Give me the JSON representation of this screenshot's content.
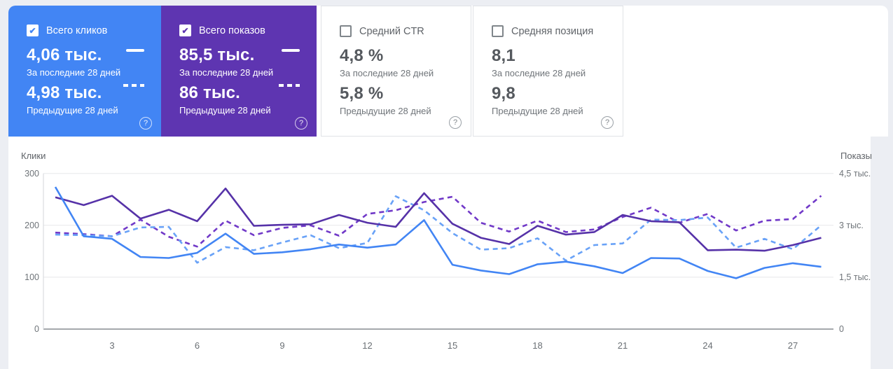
{
  "colors": {
    "page_background": "#eceef3",
    "panel_background": "#ffffff",
    "clicks_accent": "#4285f4",
    "impressions_accent": "#5e35b1",
    "card_border": "#e0e2e6",
    "grid_line": "#e7e8ea",
    "x_axis_line": "#878c91",
    "y_axis_line": "#dadce0"
  },
  "cards": [
    {
      "title": "Всего кликов",
      "checked": true,
      "filled": true,
      "color": "#4285f4",
      "current_value": "4,06 тыс.",
      "current_label": "За последние 28 дней",
      "previous_value": "4,98 тыс.",
      "previous_label": "Предыдущие 28 дней",
      "help_icon": "?",
      "check_glyph": "✔"
    },
    {
      "title": "Всего показов",
      "checked": true,
      "filled": true,
      "color": "#5e35b1",
      "current_value": "85,5 тыс.",
      "current_label": "За последние 28 дней",
      "previous_value": "86 тыс.",
      "previous_label": "Предыдущие 28 дней",
      "help_icon": "?",
      "check_glyph": "✔"
    },
    {
      "title": "Средний CTR",
      "checked": false,
      "filled": false,
      "color": "#ffffff",
      "current_value": "4,8 %",
      "current_label": "За последние 28 дней",
      "previous_value": "5,8 %",
      "previous_label": "Предыдущие 28 дней",
      "help_icon": "?",
      "check_glyph": ""
    },
    {
      "title": "Средняя позиция",
      "checked": false,
      "filled": false,
      "color": "#ffffff",
      "current_value": "8,1",
      "current_label": "За последние 28 дней",
      "previous_value": "9,8",
      "previous_label": "Предыдущие 28 дней",
      "help_icon": "?",
      "check_glyph": ""
    }
  ],
  "chart_data": {
    "type": "line",
    "x": [
      1,
      2,
      3,
      4,
      5,
      6,
      7,
      8,
      9,
      10,
      11,
      12,
      13,
      14,
      15,
      16,
      17,
      18,
      19,
      20,
      21,
      22,
      23,
      24,
      25,
      26,
      27,
      28
    ],
    "x_ticks": [
      {
        "label": "3",
        "day": 3
      },
      {
        "label": "6",
        "day": 6
      },
      {
        "label": "9",
        "day": 9
      },
      {
        "label": "12",
        "day": 12
      },
      {
        "label": "15",
        "day": 15
      },
      {
        "label": "18",
        "day": 18
      },
      {
        "label": "21",
        "day": 21
      },
      {
        "label": "24",
        "day": 24
      },
      {
        "label": "27",
        "day": 27
      }
    ],
    "left_axis": {
      "title": "Клики",
      "min": 0,
      "max": 300,
      "ticks": [
        {
          "label": "0",
          "value": 0
        },
        {
          "label": "100",
          "value": 100
        },
        {
          "label": "200",
          "value": 200
        },
        {
          "label": "300",
          "value": 300
        }
      ]
    },
    "right_axis": {
      "title": "Показы",
      "min": 0,
      "max": 4500,
      "ticks": [
        {
          "label": "0",
          "value": 0
        },
        {
          "label": "1,5 тыс.",
          "value": 1500
        },
        {
          "label": "3 тыс.",
          "value": 3000
        },
        {
          "label": "4,5 тыс.",
          "value": 4500
        }
      ]
    },
    "grid": true,
    "legend_position": "none",
    "series": [
      {
        "name": "Показы — предыдущие 28 дней",
        "axis": "right",
        "style": "dashed",
        "color": "#7139c8",
        "values": [
          2790,
          2745,
          2685,
          3165,
          2670,
          2385,
          3135,
          2715,
          2925,
          3000,
          2700,
          3330,
          3435,
          3675,
          3825,
          3075,
          2820,
          3135,
          2805,
          2880,
          3240,
          3510,
          3075,
          3330,
          2850,
          3135,
          3180,
          3855
        ]
      },
      {
        "name": "Клики — предыдущие 28 дней",
        "axis": "left",
        "style": "dashed",
        "color": "#69a2f7",
        "values": [
          182,
          181,
          179,
          196,
          197,
          128,
          158,
          152,
          167,
          181,
          156,
          166,
          256,
          229,
          185,
          153,
          156,
          175,
          132,
          162,
          165,
          211,
          210,
          215,
          157,
          174,
          154,
          200
        ]
      },
      {
        "name": "Показы — последние 28 дней",
        "axis": "right",
        "style": "solid",
        "color": "#5632a8",
        "values": [
          3810,
          3585,
          3855,
          3195,
          3450,
          3120,
          4065,
          2985,
          3015,
          3030,
          3300,
          3075,
          2955,
          3930,
          3045,
          2640,
          2460,
          2985,
          2730,
          2805,
          3300,
          3120,
          3090,
          2280,
          2295,
          2265,
          2430,
          2640
        ]
      },
      {
        "name": "Клики — последние 28 дней",
        "axis": "left",
        "style": "solid",
        "color": "#4285f4",
        "values": [
          274,
          179,
          174,
          139,
          137,
          147,
          184,
          145,
          148,
          154,
          163,
          157,
          163,
          210,
          124,
          113,
          106,
          125,
          130,
          121,
          108,
          137,
          136,
          112,
          98,
          118,
          127,
          120
        ]
      }
    ]
  }
}
